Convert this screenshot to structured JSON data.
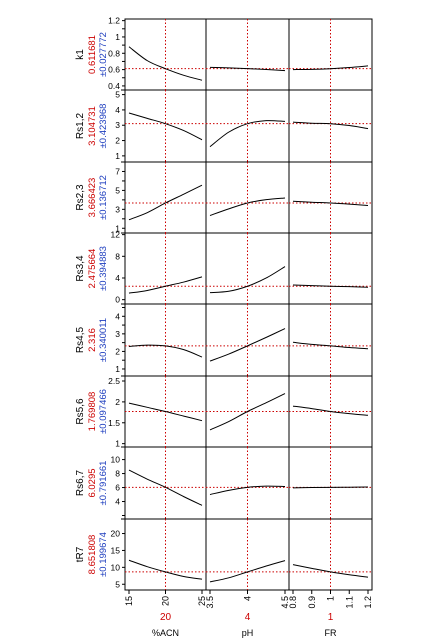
{
  "colors": {
    "resp_label": "#000000",
    "pred_value": "#cc0000",
    "ci_value": "#1f3fbf",
    "curve": "#000000",
    "crosshair": "#cc0000",
    "frame": "#000000"
  },
  "chart_data": {
    "type": "line",
    "subtype": "prediction-profiler",
    "factors": [
      {
        "name": "%ACN",
        "current": 20,
        "current_label": "20",
        "range": [
          15,
          25
        ],
        "ticks": [
          15,
          20,
          25
        ],
        "tick_labels": [
          "15",
          "20",
          "25"
        ]
      },
      {
        "name": "pH",
        "current": 4,
        "current_label": "4",
        "range": [
          3.5,
          4.5
        ],
        "ticks": [
          3.5,
          4,
          4.5
        ],
        "tick_labels": [
          "3.5",
          "4",
          "4.5"
        ]
      },
      {
        "name": "FR",
        "current": 1,
        "current_label": "1",
        "range": [
          0.8,
          1.2
        ],
        "ticks": [
          0.8,
          0.9,
          1,
          1.1,
          1.2
        ],
        "tick_labels": [
          "0.8",
          "0.9",
          "1",
          "1.1",
          "1.2"
        ]
      }
    ],
    "responses": [
      {
        "name": "k1",
        "value": "0.611681",
        "ci": "±0.027772",
        "current": 0.6117,
        "ylim": [
          0.35,
          1.22
        ],
        "ticks": [
          0.4,
          0.5,
          0.6,
          0.7,
          0.8,
          0.9,
          1.0,
          1.1,
          1.2
        ],
        "tick_labels": [
          "0.4",
          "",
          "0.6",
          "",
          "0.8",
          "",
          "1",
          "",
          "1.2"
        ],
        "curves": [
          {
            "x": [
              15,
              17.5,
              20,
              22.5,
              25
            ],
            "y": [
              0.88,
              0.71,
              0.611,
              0.53,
              0.47
            ]
          },
          {
            "x": [
              3.5,
              3.75,
              4,
              4.25,
              4.5
            ],
            "y": [
              0.627,
              0.621,
              0.612,
              0.601,
              0.588
            ]
          },
          {
            "x": [
              0.8,
              0.9,
              1.0,
              1.1,
              1.2
            ],
            "y": [
              0.6,
              0.603,
              0.611,
              0.625,
              0.645
            ]
          }
        ]
      },
      {
        "name": "Rs1,2",
        "value": "3.104731",
        "ci": "±0.423968",
        "current": 3.1047,
        "ylim": [
          0.6,
          5.3
        ],
        "ticks": [
          1,
          2,
          3,
          4,
          5
        ],
        "tick_labels": [
          "1",
          "2",
          "3",
          "4",
          "5"
        ],
        "curves": [
          {
            "x": [
              15,
              17.5,
              20,
              22.5,
              25
            ],
            "y": [
              3.8,
              3.45,
              3.1,
              2.65,
              2.05
            ]
          },
          {
            "x": [
              3.5,
              3.75,
              4,
              4.25,
              4.5
            ],
            "y": [
              1.6,
              2.55,
              3.1,
              3.3,
              3.25
            ]
          },
          {
            "x": [
              0.8,
              0.9,
              1.0,
              1.1,
              1.2
            ],
            "y": [
              3.2,
              3.13,
              3.1,
              2.98,
              2.78
            ]
          }
        ]
      },
      {
        "name": "Rs2,3",
        "value": "3.666423",
        "ci": "±0.136712",
        "current": 3.6664,
        "ylim": [
          0.5,
          8.0
        ],
        "ticks": [
          1,
          2,
          3,
          4,
          5,
          6,
          7
        ],
        "tick_labels": [
          "1",
          "",
          "3",
          "",
          "5",
          "",
          "7"
        ],
        "curves": [
          {
            "x": [
              15,
              17.5,
              20,
              22.5,
              25
            ],
            "y": [
              1.9,
              2.65,
              3.67,
              4.6,
              5.55
            ]
          },
          {
            "x": [
              3.5,
              3.75,
              4,
              4.25,
              4.5
            ],
            "y": [
              2.35,
              3.05,
              3.67,
              4.02,
              4.2
            ]
          },
          {
            "x": [
              0.8,
              0.9,
              1.0,
              1.1,
              1.2
            ],
            "y": [
              3.85,
              3.75,
              3.67,
              3.55,
              3.4
            ]
          }
        ]
      },
      {
        "name": "Rs3,4",
        "value": "2.475664",
        "ci": "±0.394883",
        "current": 2.4757,
        "ylim": [
          -0.8,
          12.3
        ],
        "ticks": [
          0,
          4,
          8,
          12
        ],
        "tick_labels": [
          "0",
          "4",
          "8",
          "12"
        ],
        "curves": [
          {
            "x": [
              15,
              17.5,
              20,
              22.5,
              25
            ],
            "y": [
              1.2,
              1.7,
              2.48,
              3.25,
              4.2
            ]
          },
          {
            "x": [
              3.5,
              3.75,
              4,
              4.25,
              4.5
            ],
            "y": [
              1.3,
              1.55,
              2.48,
              4.0,
              6.1
            ]
          },
          {
            "x": [
              0.8,
              0.9,
              1.0,
              1.1,
              1.2
            ],
            "y": [
              2.7,
              2.6,
              2.48,
              2.4,
              2.3
            ]
          }
        ]
      },
      {
        "name": "Rs4,5",
        "value": "2.316",
        "ci": "±0.340011",
        "current": 2.316,
        "ylim": [
          0.6,
          4.7
        ],
        "ticks": [
          1,
          1.5,
          2,
          2.5,
          3,
          3.5,
          4,
          4.5
        ],
        "tick_labels": [
          "1",
          "",
          "2",
          "",
          "3",
          "",
          "4",
          ""
        ],
        "curves": [
          {
            "x": [
              15,
              17.5,
              20,
              22.5,
              25
            ],
            "y": [
              2.28,
              2.36,
              2.316,
              2.1,
              1.68
            ]
          },
          {
            "x": [
              3.5,
              3.75,
              4,
              4.25,
              4.5
            ],
            "y": [
              1.45,
              1.85,
              2.316,
              2.8,
              3.3
            ]
          },
          {
            "x": [
              0.8,
              0.9,
              1.0,
              1.1,
              1.2
            ],
            "y": [
              2.52,
              2.4,
              2.316,
              2.22,
              2.15
            ]
          }
        ]
      },
      {
        "name": "Rs5,6",
        "value": "1.769808",
        "ci": "±0.097466",
        "current": 1.7698,
        "ylim": [
          0.92,
          2.62
        ],
        "ticks": [
          1,
          1.5,
          2,
          2.5
        ],
        "tick_labels": [
          "1",
          "1.5",
          "2",
          "2.5"
        ],
        "curves": [
          {
            "x": [
              15,
              17.5,
              20,
              22.5,
              25
            ],
            "y": [
              1.97,
              1.87,
              1.77,
              1.66,
              1.55
            ]
          },
          {
            "x": [
              3.5,
              3.75,
              4,
              4.25,
              4.5
            ],
            "y": [
              1.33,
              1.53,
              1.77,
              1.98,
              2.2
            ]
          },
          {
            "x": [
              0.8,
              0.9,
              1.0,
              1.1,
              1.2
            ],
            "y": [
              1.9,
              1.84,
              1.77,
              1.72,
              1.68
            ]
          }
        ]
      },
      {
        "name": "Rs6,7",
        "value": "6.0295",
        "ci": "±0.791661",
        "current": 6.0295,
        "ylim": [
          1.5,
          11.8
        ],
        "ticks": [
          2,
          4,
          6,
          8,
          10
        ],
        "tick_labels": [
          "",
          "4",
          "6",
          "8",
          "10"
        ],
        "curves": [
          {
            "x": [
              15,
              17.5,
              20,
              22.5,
              25
            ],
            "y": [
              8.5,
              7.2,
              6.03,
              4.7,
              3.45
            ]
          },
          {
            "x": [
              3.5,
              3.75,
              4,
              4.25,
              4.5
            ],
            "y": [
              5.0,
              5.6,
              6.03,
              6.2,
              6.15
            ]
          },
          {
            "x": [
              0.8,
              0.9,
              1.0,
              1.1,
              1.2
            ],
            "y": [
              5.95,
              6.0,
              6.03,
              6.05,
              6.07
            ]
          }
        ]
      },
      {
        "name": "tR7",
        "value": "8.651808",
        "ci": "±0.199674",
        "current": 8.6518,
        "ylim": [
          3.3,
          24.3
        ],
        "ticks": [
          5,
          10,
          15,
          20
        ],
        "tick_labels": [
          "5",
          "10",
          "15",
          "20"
        ],
        "curves": [
          {
            "x": [
              15,
              17.5,
              20,
              22.5,
              25
            ],
            "y": [
              12.1,
              10.2,
              8.65,
              7.3,
              6.5
            ]
          },
          {
            "x": [
              3.5,
              3.75,
              4,
              4.25,
              4.5
            ],
            "y": [
              5.7,
              6.9,
              8.65,
              10.4,
              12.0
            ]
          },
          {
            "x": [
              0.8,
              0.9,
              1.0,
              1.1,
              1.2
            ],
            "y": [
              10.8,
              9.7,
              8.65,
              7.8,
              7.1
            ]
          }
        ]
      }
    ]
  }
}
